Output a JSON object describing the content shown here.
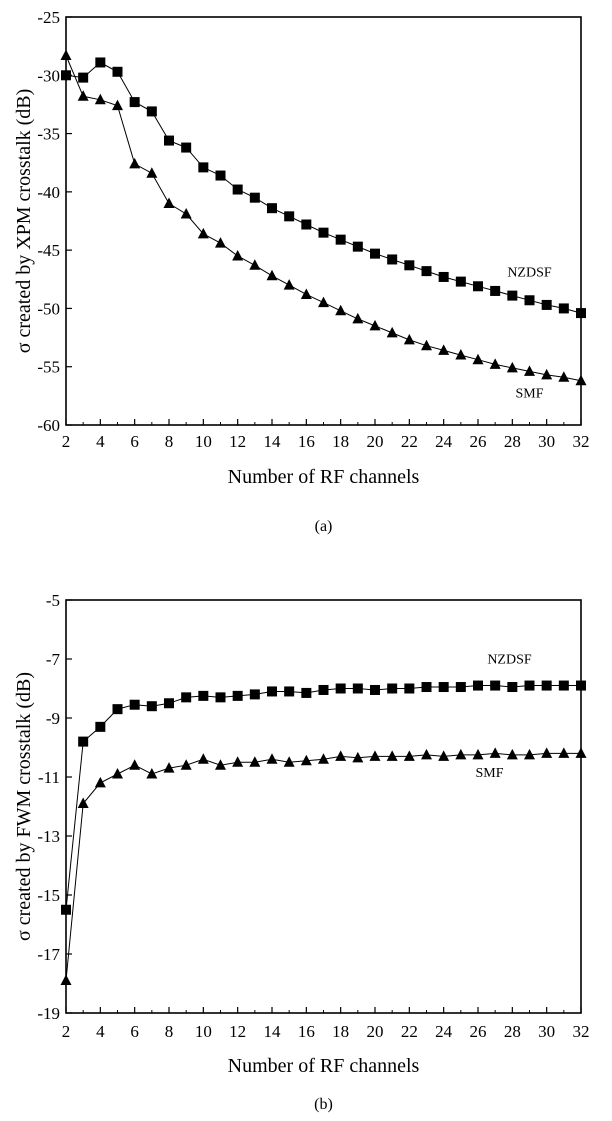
{
  "chart_data": [
    {
      "type": "line",
      "caption": "(a)",
      "xlabel": "Number of RF channels",
      "ylabel": "σ created by XPM crosstalk (dB)",
      "xlim": [
        2,
        32
      ],
      "ylim": [
        -60,
        -25
      ],
      "xticks": [
        2,
        4,
        6,
        8,
        10,
        12,
        14,
        16,
        18,
        20,
        22,
        24,
        26,
        28,
        30,
        32
      ],
      "yticks": [
        -60,
        -55,
        -50,
        -45,
        -40,
        -35,
        -30,
        -25
      ],
      "grid": false,
      "x": [
        2,
        3,
        4,
        5,
        6,
        7,
        8,
        9,
        10,
        11,
        12,
        13,
        14,
        15,
        16,
        17,
        18,
        19,
        20,
        21,
        22,
        23,
        24,
        25,
        26,
        27,
        28,
        29,
        30,
        31,
        32
      ],
      "series": [
        {
          "name": "NZDSF",
          "marker": "square",
          "values": [
            -30.0,
            -30.2,
            -28.9,
            -29.7,
            -32.3,
            -33.1,
            -35.6,
            -36.2,
            -37.9,
            -38.6,
            -39.8,
            -40.5,
            -41.4,
            -42.1,
            -42.8,
            -43.5,
            -44.1,
            -44.7,
            -45.3,
            -45.8,
            -46.3,
            -46.8,
            -47.3,
            -47.7,
            -48.1,
            -48.5,
            -48.9,
            -49.3,
            -49.7,
            -50.0,
            -50.4
          ]
        },
        {
          "name": "SMF",
          "marker": "triangle",
          "values": [
            -28.3,
            -31.8,
            -32.1,
            -32.6,
            -37.6,
            -38.4,
            -41.0,
            -41.9,
            -43.6,
            -44.4,
            -45.5,
            -46.3,
            -47.2,
            -48.0,
            -48.8,
            -49.5,
            -50.2,
            -50.9,
            -51.5,
            -52.1,
            -52.7,
            -53.2,
            -53.6,
            -54.0,
            -54.4,
            -54.8,
            -55.1,
            -55.4,
            -55.7,
            -55.9,
            -56.2
          ]
        }
      ]
    },
    {
      "type": "line",
      "caption": "(b)",
      "xlabel": "Number of RF channels",
      "ylabel": "σ created by FWM crosstalk (dB)",
      "xlim": [
        2,
        32
      ],
      "ylim": [
        -19,
        -5
      ],
      "xticks": [
        2,
        4,
        6,
        8,
        10,
        12,
        14,
        16,
        18,
        20,
        22,
        24,
        26,
        28,
        30,
        32
      ],
      "yticks": [
        -19,
        -17,
        -15,
        -13,
        -11,
        -9,
        -7,
        -5
      ],
      "grid": false,
      "x": [
        2,
        3,
        4,
        5,
        6,
        7,
        8,
        9,
        10,
        11,
        12,
        13,
        14,
        15,
        16,
        17,
        18,
        19,
        20,
        21,
        22,
        23,
        24,
        25,
        26,
        27,
        28,
        29,
        30,
        31,
        32
      ],
      "series": [
        {
          "name": "NZDSF",
          "marker": "square",
          "values": [
            -15.5,
            -9.8,
            -9.3,
            -8.7,
            -8.55,
            -8.6,
            -8.5,
            -8.3,
            -8.25,
            -8.3,
            -8.25,
            -8.2,
            -8.1,
            -8.1,
            -8.15,
            -8.05,
            -8.0,
            -8.0,
            -8.05,
            -8.0,
            -8.0,
            -7.95,
            -7.95,
            -7.95,
            -7.9,
            -7.9,
            -7.95,
            -7.9,
            -7.9,
            -7.9,
            -7.9
          ]
        },
        {
          "name": "SMF",
          "marker": "triangle",
          "values": [
            -17.9,
            -11.9,
            -11.2,
            -10.9,
            -10.6,
            -10.9,
            -10.7,
            -10.6,
            -10.4,
            -10.6,
            -10.5,
            -10.5,
            -10.4,
            -10.5,
            -10.45,
            -10.4,
            -10.3,
            -10.35,
            -10.3,
            -10.3,
            -10.3,
            -10.25,
            -10.3,
            -10.25,
            -10.25,
            -10.2,
            -10.25,
            -10.25,
            -10.2,
            -10.2,
            -10.2
          ]
        }
      ]
    }
  ]
}
